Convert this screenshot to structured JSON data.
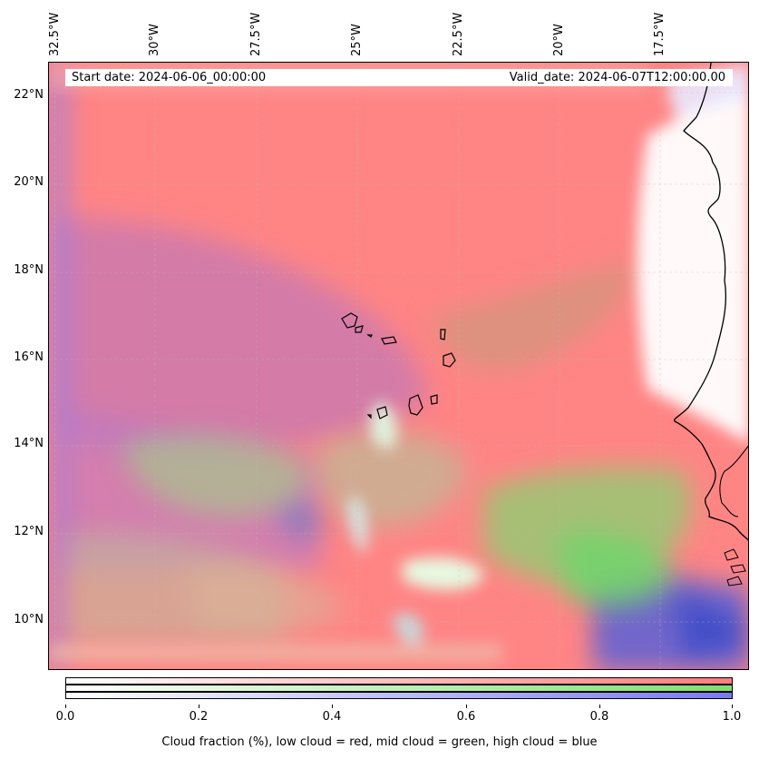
{
  "map": {
    "start_date_label": "Start date: 2024-06-06_00:00:00",
    "valid_date_label": "Valid_date: 2024-06-07T12:00:00.00",
    "longitude_labels": [
      "32.5°W",
      "30°W",
      "27.5°W",
      "25°W",
      "22.5°W",
      "20°W",
      "17.5°W"
    ],
    "latitude_labels": [
      "22°N",
      "20°N",
      "18°N",
      "16°N",
      "14°N",
      "12°N",
      "10°N"
    ],
    "colors": {
      "low_cloud": "#ff7f7f",
      "mid_cloud": "#7fe07f",
      "high_cloud": "#7f7fff",
      "clear": "#ffffff"
    }
  },
  "colorbar": {
    "tick_labels": [
      "0.0",
      "0.2",
      "0.4",
      "0.6",
      "0.8",
      "1.0"
    ],
    "caption": "Cloud fraction (%), low cloud = red, mid cloud = green, high cloud = blue"
  }
}
